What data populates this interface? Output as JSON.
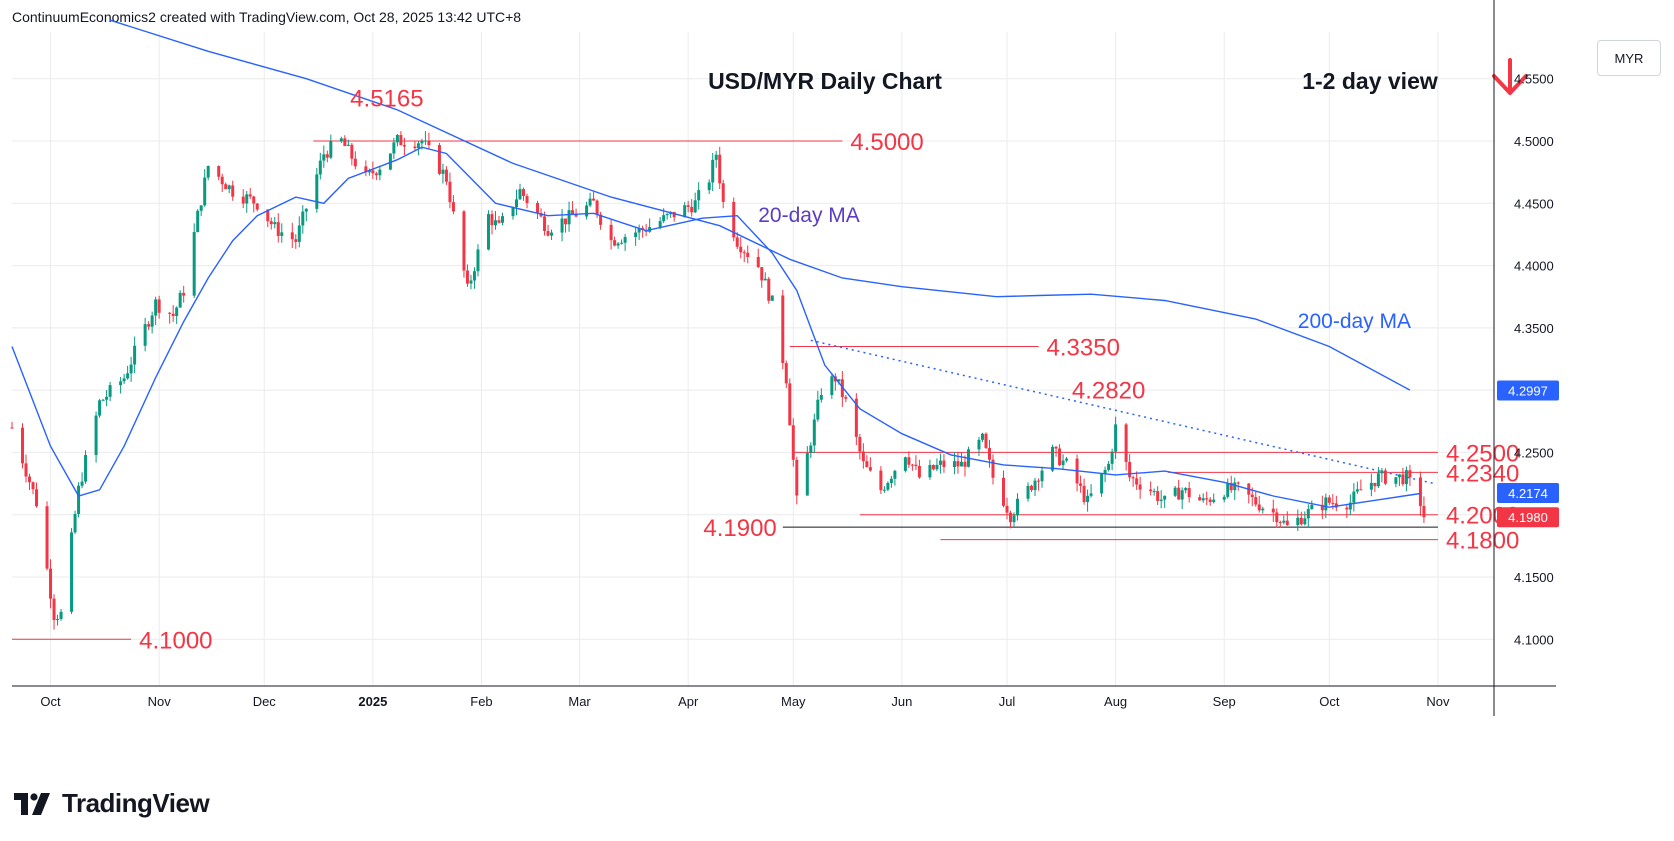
{
  "header": {
    "attribution": "ContinuumEconomics2 created with TradingView.com, Oct 28, 2025 13:42 UTC+8"
  },
  "footer": {
    "brand": "TradingView"
  },
  "currency_button": "MYR",
  "colors": {
    "up": "#089981",
    "down": "#f23645",
    "ma": "#2962ff",
    "annotation": "#f23645",
    "grid": "#e9ebee",
    "text": "#131722",
    "ma_label": "#2962ff",
    "ma20_label": "#5b3cc4"
  },
  "chart_data": {
    "type": "candlestick",
    "title": "USD/MYR Daily Chart",
    "view_label": "1-2 day view",
    "view_direction": "down",
    "y_range": [
      4.0625,
      4.5875
    ],
    "y_ticks": [
      "4.5500",
      "4.5000",
      "4.4500",
      "4.4000",
      "4.3500",
      "4.3000",
      "4.2500",
      "4.2000",
      "4.1500",
      "4.1000"
    ],
    "x_start": "2024-09-20",
    "x_end": "2025-11-17",
    "x_ticks": [
      {
        "label": "Oct",
        "date": "2024-10-01",
        "bold": false
      },
      {
        "label": "Nov",
        "date": "2024-11-01",
        "bold": false
      },
      {
        "label": "Dec",
        "date": "2024-12-01",
        "bold": false
      },
      {
        "label": "2025",
        "date": "2025-01-01",
        "bold": true
      },
      {
        "label": "Feb",
        "date": "2025-02-01",
        "bold": false
      },
      {
        "label": "Mar",
        "date": "2025-03-01",
        "bold": false
      },
      {
        "label": "Apr",
        "date": "2025-04-01",
        "bold": false
      },
      {
        "label": "May",
        "date": "2025-05-01",
        "bold": false
      },
      {
        "label": "Jun",
        "date": "2025-06-01",
        "bold": false
      },
      {
        "label": "Jul",
        "date": "2025-07-01",
        "bold": false
      },
      {
        "label": "Aug",
        "date": "2025-08-01",
        "bold": false
      },
      {
        "label": "Sep",
        "date": "2025-09-01",
        "bold": false
      },
      {
        "label": "Oct",
        "date": "2025-10-01",
        "bold": false
      },
      {
        "label": "Nov",
        "date": "2025-11-01",
        "bold": false
      }
    ],
    "price_badges": [
      {
        "value": "4.2997",
        "price": 4.2997,
        "kind": "ma200"
      },
      {
        "value": "4.2174",
        "price": 4.2174,
        "kind": "ma20"
      },
      {
        "value": "4.1980",
        "price": 4.198,
        "kind": "last"
      }
    ],
    "close_keypoints": [
      [
        "2024-09-20",
        4.27
      ],
      [
        "2024-09-27",
        4.21
      ],
      [
        "2024-10-02",
        4.12
      ],
      [
        "2024-10-04",
        4.12
      ],
      [
        "2024-10-09",
        4.22
      ],
      [
        "2024-10-15",
        4.29
      ],
      [
        "2024-10-22",
        4.31
      ],
      [
        "2024-10-31",
        4.37
      ],
      [
        "2024-11-05",
        4.36
      ],
      [
        "2024-11-08",
        4.38
      ],
      [
        "2024-11-12",
        4.44
      ],
      [
        "2024-11-15",
        4.48
      ],
      [
        "2024-11-22",
        4.46
      ],
      [
        "2024-11-29",
        4.45
      ],
      [
        "2024-12-04",
        4.43
      ],
      [
        "2024-12-10",
        4.42
      ],
      [
        "2024-12-18",
        4.49
      ],
      [
        "2024-12-23",
        4.5
      ],
      [
        "2024-12-30",
        4.47
      ],
      [
        "2025-01-03",
        4.48
      ],
      [
        "2025-01-08",
        4.5
      ],
      [
        "2025-01-15",
        4.5
      ],
      [
        "2025-01-22",
        4.47
      ],
      [
        "2025-01-28",
        4.38
      ],
      [
        "2025-02-03",
        4.44
      ],
      [
        "2025-02-06",
        4.43
      ],
      [
        "2025-02-12",
        4.46
      ],
      [
        "2025-02-20",
        4.43
      ],
      [
        "2025-02-27",
        4.44
      ],
      [
        "2025-03-05",
        4.45
      ],
      [
        "2025-03-10",
        4.42
      ],
      [
        "2025-03-20",
        4.43
      ],
      [
        "2025-03-27",
        4.44
      ],
      [
        "2025-04-03",
        4.45
      ],
      [
        "2025-04-07",
        4.47
      ],
      [
        "2025-04-09",
        4.49
      ],
      [
        "2025-04-11",
        4.45
      ],
      [
        "2025-04-15",
        4.42
      ],
      [
        "2025-04-21",
        4.4
      ],
      [
        "2025-04-25",
        4.37
      ],
      [
        "2025-04-29",
        4.31
      ],
      [
        "2025-05-02",
        4.21
      ],
      [
        "2025-05-06",
        4.26
      ],
      [
        "2025-05-09",
        4.3
      ],
      [
        "2025-05-13",
        4.31
      ],
      [
        "2025-05-16",
        4.29
      ],
      [
        "2025-05-21",
        4.24
      ],
      [
        "2025-05-26",
        4.22
      ],
      [
        "2025-06-02",
        4.25
      ],
      [
        "2025-06-06",
        4.23
      ],
      [
        "2025-06-12",
        4.24
      ],
      [
        "2025-06-18",
        4.24
      ],
      [
        "2025-06-24",
        4.26
      ],
      [
        "2025-06-27",
        4.23
      ],
      [
        "2025-07-02",
        4.2
      ],
      [
        "2025-07-07",
        4.22
      ],
      [
        "2025-07-14",
        4.25
      ],
      [
        "2025-07-18",
        4.24
      ],
      [
        "2025-07-24",
        4.21
      ],
      [
        "2025-07-30",
        4.24
      ],
      [
        "2025-08-01",
        4.27
      ],
      [
        "2025-08-05",
        4.23
      ],
      [
        "2025-08-11",
        4.22
      ],
      [
        "2025-08-15",
        4.21
      ],
      [
        "2025-08-20",
        4.22
      ],
      [
        "2025-08-26",
        4.21
      ],
      [
        "2025-09-01",
        4.22
      ],
      [
        "2025-09-05",
        4.22
      ],
      [
        "2025-09-10",
        4.21
      ],
      [
        "2025-09-16",
        4.2
      ],
      [
        "2025-09-19",
        4.19
      ],
      [
        "2025-09-24",
        4.2
      ],
      [
        "2025-09-30",
        4.21
      ],
      [
        "2025-10-03",
        4.21
      ],
      [
        "2025-10-07",
        4.21
      ],
      [
        "2025-10-10",
        4.22
      ],
      [
        "2025-10-15",
        4.23
      ],
      [
        "2025-10-20",
        4.23
      ],
      [
        "2025-10-23",
        4.23
      ],
      [
        "2025-10-27",
        4.21
      ],
      [
        "2025-10-28",
        4.198
      ]
    ],
    "ma200": [
      [
        "2024-10-18",
        4.597
      ],
      [
        "2024-11-15",
        4.572
      ],
      [
        "2024-12-13",
        4.55
      ],
      [
        "2025-01-08",
        4.525
      ],
      [
        "2025-02-10",
        4.482
      ],
      [
        "2025-03-10",
        4.455
      ],
      [
        "2025-04-10",
        4.432
      ],
      [
        "2025-04-30",
        4.405
      ],
      [
        "2025-05-15",
        4.39
      ],
      [
        "2025-06-01",
        4.383
      ],
      [
        "2025-06-28",
        4.375
      ],
      [
        "2025-07-10",
        4.376
      ],
      [
        "2025-07-25",
        4.377
      ],
      [
        "2025-08-15",
        4.372
      ],
      [
        "2025-09-10",
        4.357
      ],
      [
        "2025-10-01",
        4.335
      ],
      [
        "2025-10-24",
        4.3
      ]
    ],
    "ma20": [
      [
        "2024-09-20",
        4.335
      ],
      [
        "2024-10-01",
        4.255
      ],
      [
        "2024-10-09",
        4.215
      ],
      [
        "2024-10-15",
        4.22
      ],
      [
        "2024-10-22",
        4.255
      ],
      [
        "2024-10-31",
        4.31
      ],
      [
        "2024-11-08",
        4.355
      ],
      [
        "2024-11-15",
        4.39
      ],
      [
        "2024-11-22",
        4.42
      ],
      [
        "2024-11-29",
        4.44
      ],
      [
        "2024-12-10",
        4.455
      ],
      [
        "2024-12-18",
        4.45
      ],
      [
        "2024-12-25",
        4.47
      ],
      [
        "2025-01-08",
        4.485
      ],
      [
        "2025-01-15",
        4.495
      ],
      [
        "2025-01-22",
        4.49
      ],
      [
        "2025-02-05",
        4.45
      ],
      [
        "2025-02-20",
        4.44
      ],
      [
        "2025-03-05",
        4.442
      ],
      [
        "2025-03-20",
        4.428
      ],
      [
        "2025-04-05",
        4.438
      ],
      [
        "2025-04-15",
        4.44
      ],
      [
        "2025-04-25",
        4.41
      ],
      [
        "2025-05-02",
        4.38
      ],
      [
        "2025-05-10",
        4.32
      ],
      [
        "2025-05-20",
        4.285
      ],
      [
        "2025-06-01",
        4.265
      ],
      [
        "2025-06-15",
        4.248
      ],
      [
        "2025-06-30",
        4.24
      ],
      [
        "2025-07-15",
        4.237
      ],
      [
        "2025-08-01",
        4.232
      ],
      [
        "2025-08-15",
        4.235
      ],
      [
        "2025-09-01",
        4.226
      ],
      [
        "2025-09-15",
        4.215
      ],
      [
        "2025-10-01",
        4.206
      ],
      [
        "2025-10-15",
        4.212
      ],
      [
        "2025-10-27",
        4.217
      ]
    ],
    "levels": [
      {
        "value": 4.5,
        "label": "4.5000",
        "from": "2024-12-15",
        "to": "2025-05-15",
        "label_side": "right"
      },
      {
        "value": 4.335,
        "label": "4.3350",
        "from": "2025-04-30",
        "to": "2025-07-10",
        "label_side": "right"
      },
      {
        "value": 4.25,
        "label": "4.2500",
        "from": "2025-05-01",
        "to": "2025-11-01",
        "label_side": "right"
      },
      {
        "value": 4.234,
        "label": "4.2340",
        "from": "2025-08-16",
        "to": "2025-11-01",
        "label_side": "right"
      },
      {
        "value": 4.2,
        "label": "4.2000",
        "from": "2025-05-20",
        "to": "2025-11-01",
        "label_side": "right"
      },
      {
        "value": 4.19,
        "label": "4.1900",
        "from": "2025-04-28",
        "to": "2025-11-01",
        "label_side": "left"
      },
      {
        "value": 4.18,
        "label": "4.1800",
        "from": "2025-06-12",
        "to": "2025-11-01",
        "label_side": "right"
      },
      {
        "value": 4.1,
        "label": "4.1000",
        "from": "2024-09-20",
        "to": "2024-10-24",
        "label_side": "right"
      }
    ],
    "point_labels": [
      {
        "label": "4.5165",
        "date": "2025-01-05",
        "value": 4.5165
      },
      {
        "label": "4.2820",
        "date": "2025-07-30",
        "value": 4.282
      }
    ],
    "trendline": {
      "from": [
        "2025-05-06",
        4.34
      ],
      "to": [
        "2025-10-31",
        4.225
      ],
      "style": "dotted"
    },
    "ma_labels": [
      {
        "label": "20-day MA",
        "date": "2025-04-21",
        "value": 4.435
      },
      {
        "label": "200-day MA",
        "date": "2025-09-22",
        "value": 4.35
      }
    ]
  }
}
